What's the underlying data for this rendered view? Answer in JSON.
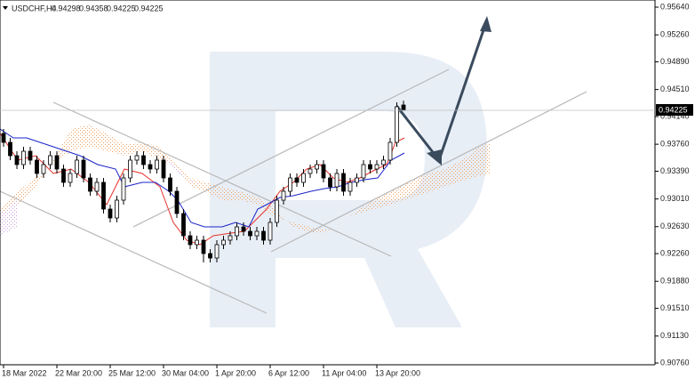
{
  "chart_data": {
    "type": "candlestick",
    "symbol": "USDCHF,H4",
    "categories": [
      "18 Mar 2022",
      null,
      null,
      null,
      null,
      null,
      null,
      null,
      "22 Mar 20:00",
      null,
      null,
      null,
      null,
      null,
      null,
      null,
      "25 Mar 12:00",
      null,
      null,
      null,
      null,
      null,
      null,
      null,
      "30 Mar 04:00",
      null,
      null,
      null,
      null,
      null,
      null,
      null,
      "1 Apr 20:00",
      null,
      null,
      null,
      null,
      null,
      null,
      null,
      "6 Apr 12:00",
      null,
      null,
      null,
      null,
      null,
      null,
      null,
      "11 Apr 04:00",
      null,
      null,
      null,
      null,
      null,
      null,
      null,
      "13 Apr 20:00",
      null,
      null,
      null,
      null
    ],
    "open": [
      0.93908,
      0.93786,
      0.93603,
      0.93481,
      0.93664,
      0.93542,
      0.93359,
      0.93481,
      0.93603,
      0.9342,
      0.93237,
      0.93359,
      0.93542,
      0.93298,
      0.93115,
      0.93237,
      0.92871,
      0.92749,
      0.92993,
      0.93298,
      0.93542,
      0.93603,
      0.93481,
      0.9342,
      0.93542,
      0.93298,
      0.93115,
      0.9281,
      0.92505,
      0.92383,
      0.92444,
      0.92261,
      0.922,
      0.92383,
      0.92444,
      0.92505,
      0.92627,
      0.92566,
      0.92505,
      0.92566,
      0.92444,
      0.92688,
      0.92993,
      0.93115,
      0.93298,
      0.93237,
      0.93359,
      0.9342,
      0.93481,
      0.93298,
      0.93176,
      0.93359,
      0.93115,
      0.93237,
      0.93298,
      0.93481,
      0.9342,
      0.93481,
      0.93542,
      0.93786,
      0.94298
    ],
    "high": [
      0.93969,
      0.93847,
      0.93664,
      0.93725,
      0.93725,
      0.93603,
      0.93542,
      0.93664,
      0.93664,
      0.93481,
      0.9342,
      0.93603,
      0.93603,
      0.93359,
      0.93298,
      0.93298,
      0.92932,
      0.93054,
      0.93359,
      0.93603,
      0.93664,
      0.93664,
      0.93542,
      0.93603,
      0.93603,
      0.93359,
      0.93176,
      0.92871,
      0.92566,
      0.92505,
      0.92505,
      0.92322,
      0.92444,
      0.92505,
      0.92566,
      0.92688,
      0.92688,
      0.92627,
      0.92627,
      0.92627,
      0.92749,
      0.93054,
      0.93176,
      0.93359,
      0.93359,
      0.9342,
      0.93481,
      0.93542,
      0.93542,
      0.93359,
      0.9342,
      0.9342,
      0.93298,
      0.93359,
      0.93542,
      0.93542,
      0.93542,
      0.93603,
      0.93847,
      0.94335,
      0.94358
    ],
    "low": [
      0.93725,
      0.93542,
      0.9342,
      0.9342,
      0.93481,
      0.93298,
      0.93298,
      0.9342,
      0.93359,
      0.93176,
      0.93176,
      0.93298,
      0.93237,
      0.93054,
      0.93054,
      0.9281,
      0.92688,
      0.92688,
      0.92932,
      0.93237,
      0.93481,
      0.9342,
      0.93359,
      0.93359,
      0.93237,
      0.93054,
      0.92749,
      0.92444,
      0.92322,
      0.92322,
      0.92139,
      0.92139,
      0.92139,
      0.92322,
      0.92383,
      0.92444,
      0.92505,
      0.92444,
      0.92444,
      0.92383,
      0.92383,
      0.92627,
      0.92932,
      0.93054,
      0.93176,
      0.93176,
      0.93298,
      0.93359,
      0.93237,
      0.93115,
      0.93115,
      0.93054,
      0.93054,
      0.93176,
      0.93237,
      0.93359,
      0.93359,
      0.9342,
      0.93481,
      0.93725,
      0.94225
    ],
    "close": [
      0.93786,
      0.93603,
      0.93481,
      0.93664,
      0.93542,
      0.93359,
      0.93481,
      0.93603,
      0.9342,
      0.93237,
      0.93359,
      0.93542,
      0.93298,
      0.93115,
      0.93237,
      0.92871,
      0.92749,
      0.92993,
      0.93298,
      0.93542,
      0.93603,
      0.93481,
      0.9342,
      0.93542,
      0.93298,
      0.93115,
      0.9281,
      0.92505,
      0.92383,
      0.92444,
      0.92261,
      0.922,
      0.92383,
      0.92444,
      0.92505,
      0.92627,
      0.92566,
      0.92505,
      0.92566,
      0.92444,
      0.92688,
      0.92993,
      0.93115,
      0.93298,
      0.93237,
      0.93359,
      0.9342,
      0.93481,
      0.93298,
      0.93176,
      0.93359,
      0.93115,
      0.93237,
      0.93298,
      0.93481,
      0.9342,
      0.93481,
      0.93542,
      0.93786,
      0.94274,
      0.94225
    ],
    "bull_color": "#ffffff",
    "bear_color": "#000000",
    "outline_color": "#000000",
    "ylim": [
      0.90736,
      0.95738
    ],
    "yticks": [
      {
        "value": 0.9564,
        "label": "0.95640"
      },
      {
        "value": 0.9526,
        "label": "0.95260"
      },
      {
        "value": 0.9489,
        "label": "0.94890"
      },
      {
        "value": 0.9451,
        "label": "0.94510"
      },
      {
        "value": 0.9414,
        "label": "0.94140"
      },
      {
        "value": 0.9376,
        "label": "0.93760"
      },
      {
        "value": 0.9339,
        "label": "0.93390"
      },
      {
        "value": 0.9301,
        "label": "0.93010"
      },
      {
        "value": 0.9263,
        "label": "0.92630"
      },
      {
        "value": 0.9226,
        "label": "0.92260"
      },
      {
        "value": 0.9188,
        "label": "0.91880"
      },
      {
        "value": 0.9151,
        "label": "0.91510"
      },
      {
        "value": 0.9113,
        "label": "0.91130"
      },
      {
        "value": 0.9076,
        "label": "0.90760"
      }
    ]
  }
}
